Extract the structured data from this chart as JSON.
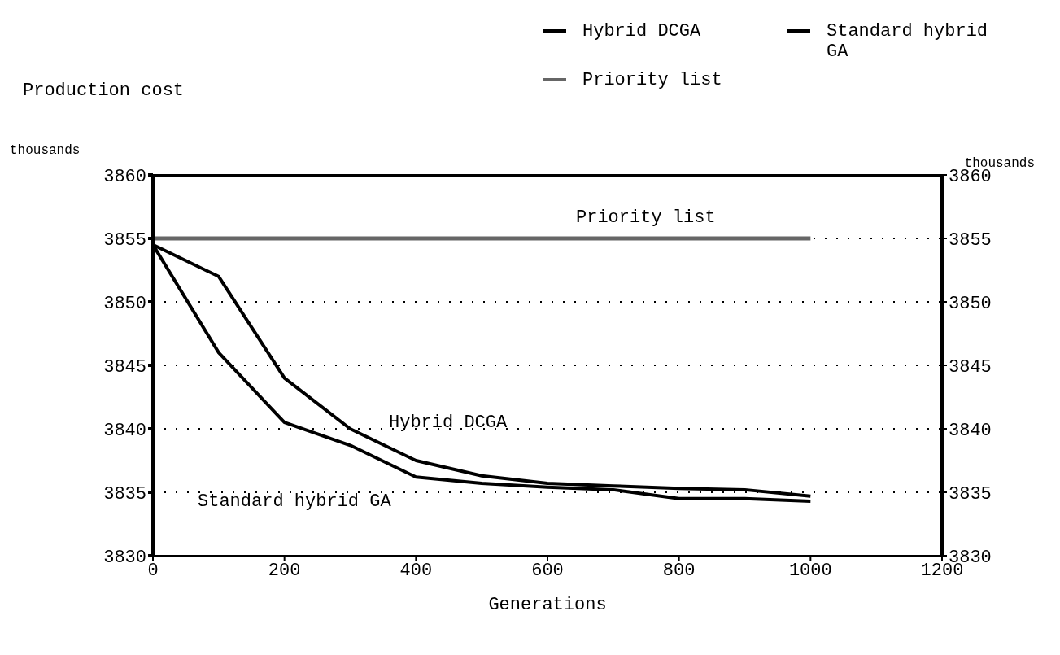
{
  "chart_data": {
    "type": "line",
    "xlabel": "Generations",
    "ylabel": "Production cost",
    "y2label": "thousands",
    "annotations": [
      "thousands",
      "Priority list",
      "Hybrid DCGA",
      "Standard hybrid GA"
    ],
    "series": [
      {
        "name": "Hybrid DCGA",
        "color": "#000000",
        "x": [
          0,
          100,
          200,
          300,
          400,
          500,
          600,
          700,
          800,
          900,
          1000
        ],
        "values": [
          3854.5,
          3852,
          3844,
          3840,
          3837.5,
          3836.3,
          3835.7,
          3835.5,
          3835.3,
          3835.2,
          3834.7
        ]
      },
      {
        "name": "Standard hybrid GA",
        "color": "#000000",
        "x": [
          0,
          100,
          200,
          300,
          400,
          500,
          600,
          700,
          800,
          900,
          1000
        ],
        "values": [
          3854.5,
          3846,
          3840.5,
          3838.7,
          3836.2,
          3835.7,
          3835.4,
          3835.2,
          3834.5,
          3834.5,
          3834.3
        ]
      },
      {
        "name": "Priority list",
        "color": "#666666",
        "x": [
          0,
          1000
        ],
        "values": [
          3855,
          3855
        ]
      }
    ],
    "xlim": [
      0,
      1200
    ],
    "xticks": [
      0,
      200,
      400,
      600,
      800,
      1000,
      1200
    ],
    "ylim": [
      3830,
      3860
    ],
    "yticks": [
      3830,
      3835,
      3840,
      3845,
      3850,
      3855,
      3860
    ],
    "y2lim": [
      3830,
      3860
    ],
    "y2ticks": [
      3830,
      3835,
      3840,
      3845,
      3850,
      3855,
      3860
    ],
    "grid": "y",
    "legend": "top right",
    "marker": "none",
    "line_style": "solid"
  }
}
